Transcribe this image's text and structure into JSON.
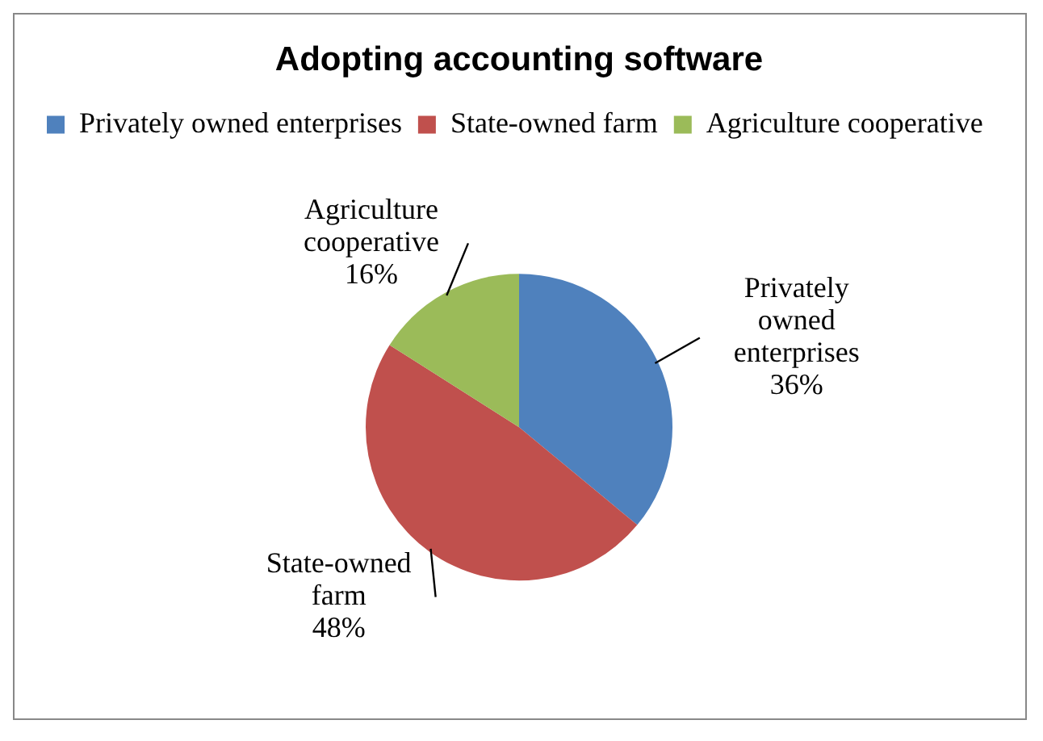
{
  "chart_data": {
    "type": "pie",
    "title": "Adopting accounting software",
    "categories": [
      "Privately owned enterprises",
      "State-owned farm",
      "Agriculture cooperative"
    ],
    "values": [
      36,
      48,
      16
    ],
    "colors": [
      "#4f81bd",
      "#c0504d",
      "#9bbb59"
    ],
    "value_labels": [
      "36%",
      "48%",
      "16%"
    ],
    "legend": "top"
  }
}
